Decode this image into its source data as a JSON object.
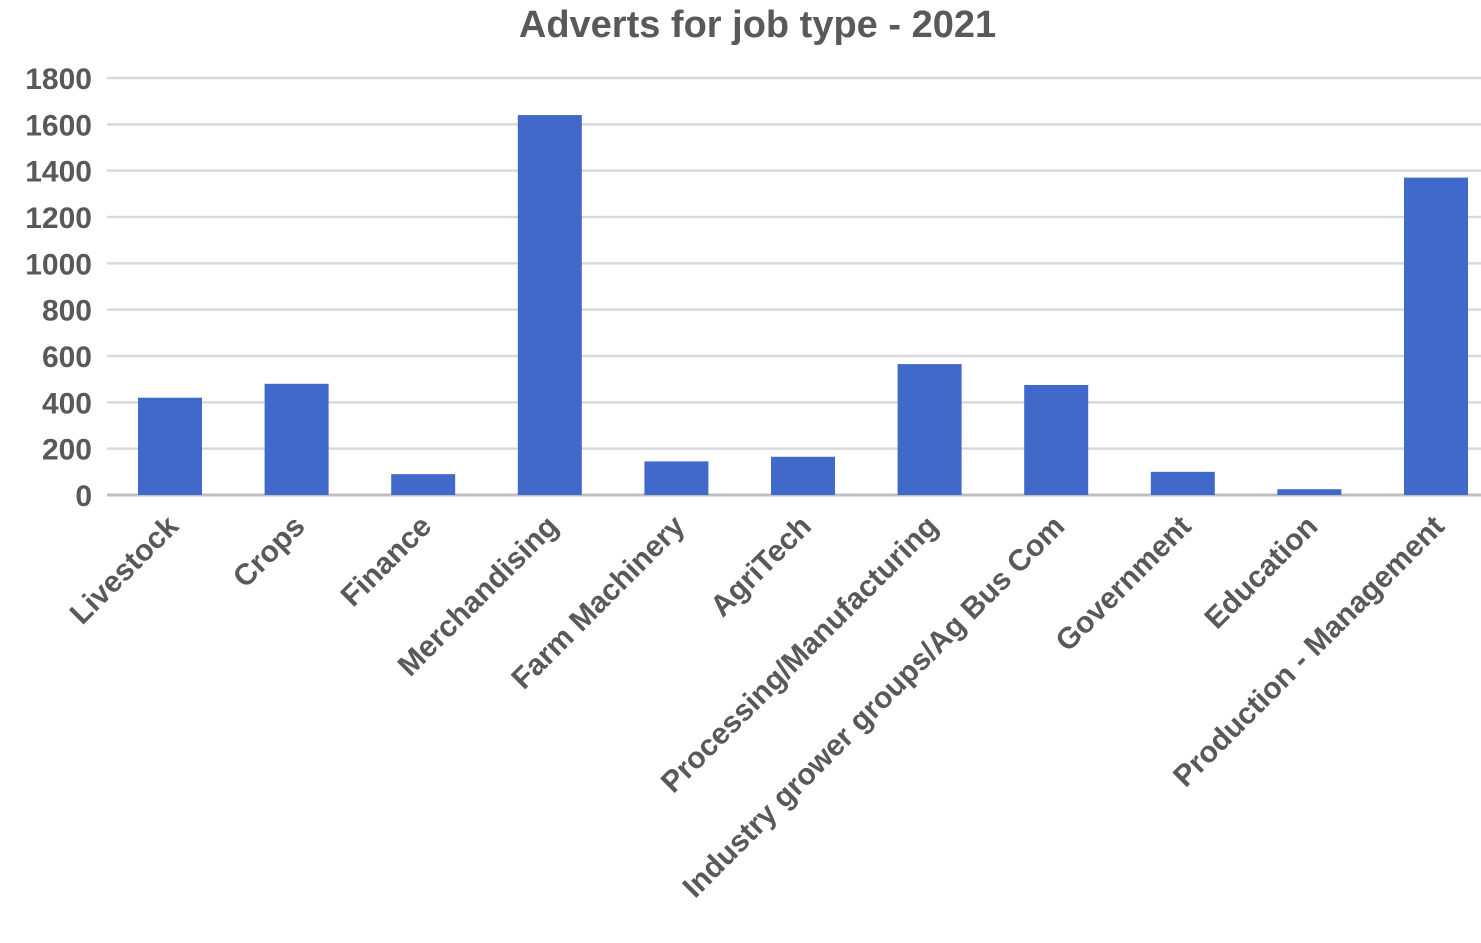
{
  "chart_data": {
    "type": "bar",
    "title": "Adverts for job type - 2021",
    "xlabel": "",
    "ylabel": "",
    "ylim": [
      0,
      1800
    ],
    "yticks": [
      0,
      200,
      400,
      600,
      800,
      1000,
      1200,
      1400,
      1600,
      1800
    ],
    "grid": true,
    "legend": "none",
    "bar_color": "#4169c9",
    "categories": [
      "Livestock",
      "Crops",
      "Finance",
      "Merchandising",
      "Farm Machinery",
      "AgriTech",
      "Processing/Manufacturing",
      "Industry grower groups/Ag Bus Com",
      "Government",
      "Education",
      "Production - Management"
    ],
    "values": [
      420,
      480,
      90,
      1640,
      145,
      165,
      565,
      475,
      100,
      25,
      1370
    ]
  }
}
